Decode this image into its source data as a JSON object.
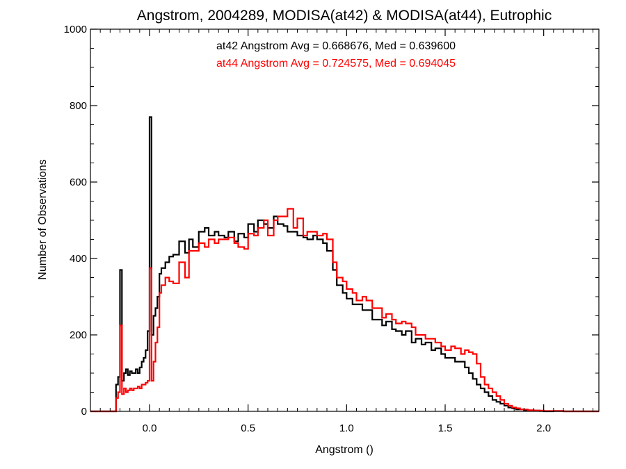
{
  "chart_data": {
    "type": "line",
    "title": "Angstrom, 2004289, MODISA(at42) & MODISA(at44), Eutrophic",
    "xlabel": "Angstrom ()",
    "ylabel": "Number of Observations",
    "xlim": [
      -0.3,
      2.28
    ],
    "ylim": [
      0,
      1000
    ],
    "xticks": [
      0.0,
      0.5,
      1.0,
      1.5,
      2.0
    ],
    "xtick_labels": [
      "0.0",
      "0.5",
      "1.0",
      "1.5",
      "2.0"
    ],
    "yticks": [
      0,
      200,
      400,
      600,
      800,
      1000
    ],
    "ytick_labels": [
      "0",
      "200",
      "400",
      "600",
      "800",
      "1000"
    ],
    "grid": false,
    "annotations": [
      {
        "text": "at42 Angstrom Avg = 0.668676, Med = 0.639600",
        "color": "#000000"
      },
      {
        "text": "at44 Angstrom Avg = 0.724575, Med = 0.694045",
        "color": "#ff0000"
      }
    ],
    "series": [
      {
        "color": "#000000",
        "x": [
          -0.3,
          -0.18,
          -0.17,
          -0.16,
          -0.15,
          -0.14,
          -0.13,
          -0.12,
          -0.11,
          -0.1,
          -0.09,
          -0.08,
          -0.07,
          -0.06,
          -0.05,
          -0.04,
          -0.03,
          -0.02,
          -0.01,
          0.0,
          0.01,
          0.02,
          0.03,
          0.04,
          0.05,
          0.06,
          0.08,
          0.1,
          0.12,
          0.15,
          0.18,
          0.2,
          0.22,
          0.25,
          0.28,
          0.3,
          0.33,
          0.35,
          0.38,
          0.4,
          0.43,
          0.45,
          0.48,
          0.5,
          0.53,
          0.55,
          0.58,
          0.6,
          0.63,
          0.65,
          0.68,
          0.7,
          0.73,
          0.75,
          0.78,
          0.8,
          0.83,
          0.85,
          0.88,
          0.9,
          0.93,
          0.95,
          0.98,
          1.0,
          1.03,
          1.05,
          1.08,
          1.1,
          1.13,
          1.15,
          1.18,
          1.2,
          1.23,
          1.25,
          1.28,
          1.3,
          1.33,
          1.35,
          1.38,
          1.4,
          1.43,
          1.45,
          1.48,
          1.5,
          1.53,
          1.55,
          1.58,
          1.6,
          1.62,
          1.64,
          1.66,
          1.68,
          1.7,
          1.72,
          1.74,
          1.76,
          1.78,
          1.8,
          1.82,
          1.84,
          1.86,
          1.88,
          1.9,
          1.92,
          1.95,
          1.98,
          2.0,
          2.05,
          2.1,
          2.15,
          2.28
        ],
        "y": [
          0,
          0,
          70,
          90,
          370,
          80,
          100,
          110,
          95,
          105,
          100,
          100,
          110,
          100,
          115,
          130,
          140,
          160,
          210,
          770,
          200,
          250,
          270,
          300,
          360,
          375,
          390,
          405,
          410,
          445,
          415,
          450,
          430,
          470,
          480,
          460,
          470,
          460,
          455,
          470,
          445,
          465,
          455,
          490,
          470,
          500,
          490,
          480,
          510,
          490,
          485,
          470,
          470,
          460,
          455,
          450,
          460,
          450,
          440,
          420,
          370,
          330,
          310,
          295,
          280,
          280,
          265,
          265,
          240,
          240,
          225,
          235,
          215,
          210,
          200,
          210,
          180,
          190,
          175,
          180,
          160,
          165,
          150,
          140,
          140,
          130,
          130,
          115,
          100,
          85,
          70,
          60,
          50,
          40,
          30,
          25,
          20,
          15,
          10,
          8,
          5,
          5,
          3,
          2,
          2,
          1,
          0,
          1,
          0,
          0,
          0
        ]
      },
      {
        "color": "#ff0000",
        "x": [
          -0.3,
          -0.18,
          -0.17,
          -0.16,
          -0.15,
          -0.14,
          -0.13,
          -0.12,
          -0.11,
          -0.1,
          -0.09,
          -0.08,
          -0.07,
          -0.06,
          -0.05,
          -0.04,
          -0.03,
          -0.02,
          -0.01,
          0.0,
          0.01,
          0.02,
          0.03,
          0.04,
          0.05,
          0.06,
          0.08,
          0.1,
          0.12,
          0.15,
          0.18,
          0.2,
          0.22,
          0.25,
          0.28,
          0.3,
          0.33,
          0.35,
          0.38,
          0.4,
          0.43,
          0.45,
          0.48,
          0.5,
          0.53,
          0.55,
          0.58,
          0.6,
          0.63,
          0.65,
          0.68,
          0.7,
          0.73,
          0.75,
          0.78,
          0.8,
          0.83,
          0.85,
          0.88,
          0.9,
          0.93,
          0.95,
          0.98,
          1.0,
          1.03,
          1.05,
          1.08,
          1.1,
          1.13,
          1.15,
          1.18,
          1.2,
          1.23,
          1.25,
          1.28,
          1.3,
          1.33,
          1.35,
          1.38,
          1.4,
          1.43,
          1.45,
          1.48,
          1.5,
          1.53,
          1.55,
          1.58,
          1.6,
          1.62,
          1.64,
          1.66,
          1.68,
          1.7,
          1.72,
          1.74,
          1.76,
          1.78,
          1.8,
          1.82,
          1.84,
          1.86,
          1.88,
          1.9,
          1.92,
          1.95,
          1.98,
          2.0,
          2.05,
          2.1,
          2.15,
          2.28
        ],
        "y": [
          0,
          0,
          35,
          50,
          225,
          45,
          60,
          50,
          55,
          60,
          55,
          60,
          60,
          65,
          60,
          70,
          70,
          75,
          80,
          375,
          80,
          130,
          180,
          220,
          310,
          330,
          350,
          340,
          335,
          390,
          350,
          420,
          420,
          440,
          430,
          450,
          440,
          450,
          450,
          455,
          440,
          430,
          425,
          465,
          460,
          480,
          500,
          460,
          500,
          510,
          510,
          530,
          480,
          505,
          460,
          470,
          470,
          460,
          465,
          450,
          390,
          350,
          340,
          320,
          310,
          290,
          300,
          290,
          270,
          270,
          245,
          255,
          240,
          230,
          235,
          230,
          220,
          200,
          200,
          190,
          190,
          180,
          170,
          160,
          170,
          165,
          150,
          160,
          155,
          150,
          125,
          90,
          70,
          60,
          50,
          40,
          30,
          20,
          15,
          10,
          8,
          5,
          5,
          3,
          2,
          2,
          1,
          1,
          0,
          0,
          0
        ]
      }
    ]
  }
}
